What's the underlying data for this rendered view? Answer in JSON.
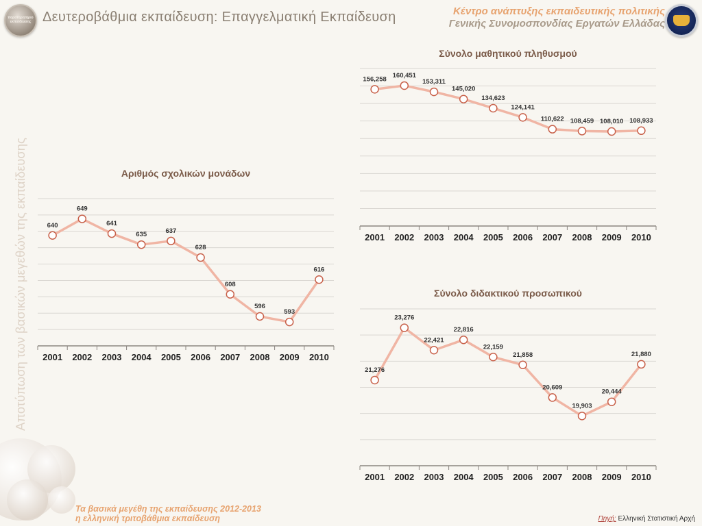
{
  "header": {
    "title": "Δευτεροβάθμια εκπαίδευση: Επαγγελματική Εκπαίδευση",
    "org_line1": "Κέντρο ανάπτυξης εκπαιδευτικής πολιτικής",
    "org_line2": "Γενικής Συνομοσπονδίας Εργατών Ελλάδας",
    "left_logo_text": "παρατηρητήριο εκπαίδευσης"
  },
  "side_title": "Αποτύπωση των βασικών μεγεθών της εκπαίδευσης",
  "footer": {
    "line1": "Τα βασικά μεγέθη της εκπαίδευσης 2012-2013",
    "line2": "η ελληνική τριτοβάθμια εκπαίδευση",
    "source_label": "Πηγή",
    "source_text": "Ελληνική Στατιστική Αρχή"
  },
  "colors": {
    "line": "#f0b5a4",
    "marker_edge": "#c8614a",
    "marker_fill": "#ffffff",
    "title": "#7a5a48",
    "grid": "#d9d6d1",
    "accent": "#e7a36f"
  },
  "chart_data": [
    {
      "id": "schools",
      "type": "line",
      "title": "Αριθμός σχολικών μονάδων",
      "categories": [
        "2001",
        "2002",
        "2003",
        "2004",
        "2005",
        "2006",
        "2007",
        "2008",
        "2009",
        "2010"
      ],
      "values": [
        640,
        649,
        641,
        635,
        637,
        628,
        608,
        596,
        593,
        616
      ],
      "labels": [
        "640",
        "649",
        "641",
        "635",
        "637",
        "628",
        "608",
        "596",
        "593",
        "616"
      ],
      "ylim": [
        580,
        660
      ],
      "grid": true
    },
    {
      "id": "students",
      "type": "line",
      "title": "Σύνολο μαθητικού πληθυσμού",
      "categories": [
        "2001",
        "2002",
        "2003",
        "2004",
        "2005",
        "2006",
        "2007",
        "2008",
        "2009",
        "2010"
      ],
      "values": [
        156258,
        160451,
        153311,
        145020,
        134623,
        124141,
        110622,
        108459,
        108010,
        108933
      ],
      "labels": [
        "156,258",
        "160,451",
        "153,311",
        "145,020",
        "134,623",
        "124,141",
        "110,622",
        "108,459",
        "108,010",
        "108,933"
      ],
      "ylim": [
        0,
        180000
      ],
      "grid": true
    },
    {
      "id": "teachers",
      "type": "line",
      "title": "Σύνολο διδακτικού προσωπικού",
      "categories": [
        "2001",
        "2002",
        "2003",
        "2004",
        "2005",
        "2006",
        "2007",
        "2008",
        "2009",
        "2010"
      ],
      "values": [
        21276,
        23276,
        22421,
        22816,
        22159,
        21858,
        20609,
        19903,
        20444,
        21880
      ],
      "labels": [
        "21,276",
        "23,276",
        "22,421",
        "22,816",
        "22,159",
        "21,858",
        "20,609",
        "19,903",
        "20,444",
        "21,880"
      ],
      "ylim": [
        18000,
        24000
      ],
      "grid": true
    }
  ]
}
